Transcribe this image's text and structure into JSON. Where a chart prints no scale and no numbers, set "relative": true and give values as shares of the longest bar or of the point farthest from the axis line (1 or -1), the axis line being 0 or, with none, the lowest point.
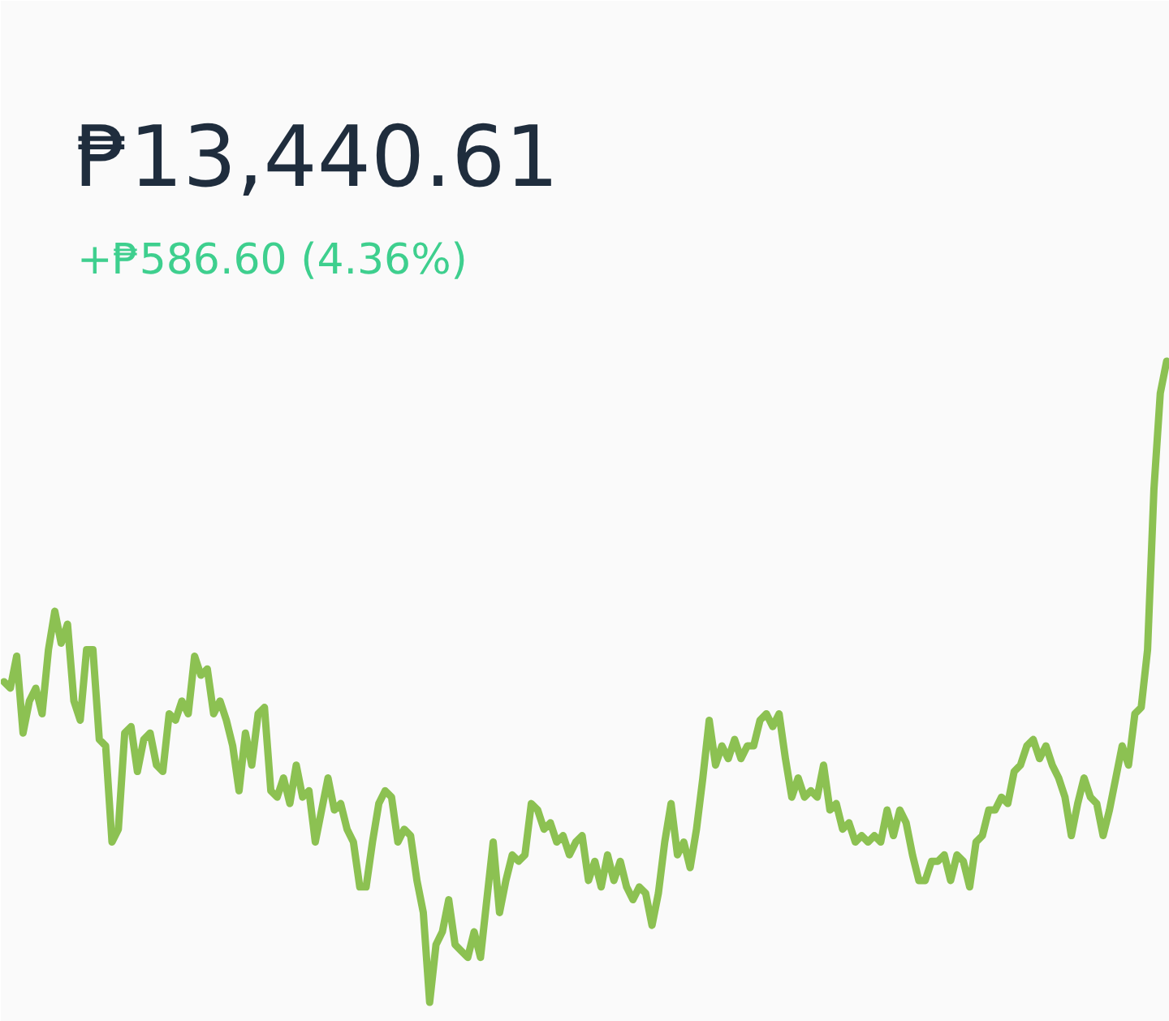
{
  "chart_data": {
    "type": "line",
    "title": "₱13,440.61",
    "subtitle": "+₱586.60 (4.36%)",
    "relative": true,
    "line_style": "solid",
    "categories": [
      null,
      null,
      null,
      null,
      null,
      null,
      null,
      null,
      null,
      null,
      null,
      null,
      null,
      null,
      null,
      null,
      null,
      null,
      null,
      null,
      null,
      null,
      null,
      null,
      null,
      null,
      null,
      null,
      null,
      null,
      null,
      null,
      null,
      null,
      null,
      null,
      null,
      null,
      null,
      null,
      null,
      null,
      null,
      null,
      null,
      null,
      null,
      null,
      null,
      null,
      null,
      null,
      null,
      null,
      null,
      null,
      null,
      null,
      null,
      null,
      null,
      null,
      null,
      null,
      null,
      null,
      null,
      null,
      null,
      null,
      null,
      null,
      null,
      null,
      null,
      null,
      null,
      null,
      null,
      null,
      null,
      null,
      null,
      null,
      null,
      null,
      null,
      null,
      null,
      null,
      null,
      null,
      null,
      null,
      null,
      null,
      null,
      null,
      null,
      null,
      null,
      null,
      null,
      null,
      null,
      null,
      null,
      null,
      null,
      null,
      null,
      null,
      null,
      null,
      null,
      null,
      null,
      null,
      null,
      null,
      null,
      null,
      null,
      null,
      null,
      null,
      null,
      null,
      null,
      null,
      null,
      null,
      null,
      null,
      null,
      null,
      null,
      null,
      null,
      null,
      null,
      null,
      null,
      null,
      null,
      null,
      null,
      null,
      null,
      null,
      null,
      null,
      null,
      null,
      null,
      null,
      null,
      null,
      null,
      null,
      null,
      null,
      null,
      null,
      null,
      null,
      null,
      null,
      null,
      null,
      null,
      null,
      null,
      null,
      null,
      null,
      null,
      null,
      null,
      null,
      null,
      null,
      null,
      null
    ],
    "series": [
      {
        "color": "#8cc152",
        "values": [
          0.5,
          0.49,
          0.54,
          0.42,
          0.47,
          0.49,
          0.45,
          0.55,
          0.61,
          0.56,
          0.59,
          0.47,
          0.44,
          0.55,
          0.55,
          0.41,
          0.4,
          0.25,
          0.27,
          0.42,
          0.43,
          0.36,
          0.41,
          0.42,
          0.37,
          0.36,
          0.45,
          0.44,
          0.47,
          0.45,
          0.54,
          0.51,
          0.52,
          0.45,
          0.47,
          0.44,
          0.4,
          0.33,
          0.42,
          0.37,
          0.45,
          0.46,
          0.33,
          0.32,
          0.35,
          0.31,
          0.37,
          0.32,
          0.33,
          0.25,
          0.3,
          0.35,
          0.3,
          0.31,
          0.27,
          0.25,
          0.18,
          0.18,
          0.25,
          0.31,
          0.33,
          0.32,
          0.25,
          0.27,
          0.26,
          0.19,
          0.14,
          0,
          0.09,
          0.11,
          0.16,
          0.09,
          0.08,
          0.07,
          0.11,
          0.07,
          0.16,
          0.25,
          0.14,
          0.19,
          0.23,
          0.22,
          0.23,
          0.31,
          0.3,
          0.27,
          0.28,
          0.25,
          0.26,
          0.23,
          0.25,
          0.26,
          0.19,
          0.22,
          0.18,
          0.23,
          0.19,
          0.22,
          0.18,
          0.16,
          0.18,
          0.17,
          0.12,
          0.17,
          0.25,
          0.31,
          0.23,
          0.25,
          0.21,
          0.27,
          0.35,
          0.44,
          0.37,
          0.4,
          0.38,
          0.41,
          0.38,
          0.4,
          0.4,
          0.44,
          0.45,
          0.43,
          0.45,
          0.38,
          0.32,
          0.35,
          0.32,
          0.33,
          0.32,
          0.37,
          0.3,
          0.31,
          0.27,
          0.28,
          0.25,
          0.26,
          0.25,
          0.26,
          0.25,
          0.3,
          0.26,
          0.3,
          0.28,
          0.23,
          0.19,
          0.19,
          0.22,
          0.22,
          0.23,
          0.19,
          0.23,
          0.22,
          0.18,
          0.25,
          0.26,
          0.3,
          0.3,
          0.32,
          0.31,
          0.36,
          0.37,
          0.4,
          0.41,
          0.38,
          0.4,
          0.37,
          0.35,
          0.32,
          0.26,
          0.31,
          0.35,
          0.32,
          0.31,
          0.26,
          0.3,
          0.35,
          0.4,
          0.37,
          0.45,
          0.46,
          0.55,
          0.8,
          0.95,
          1
        ]
      }
    ]
  }
}
